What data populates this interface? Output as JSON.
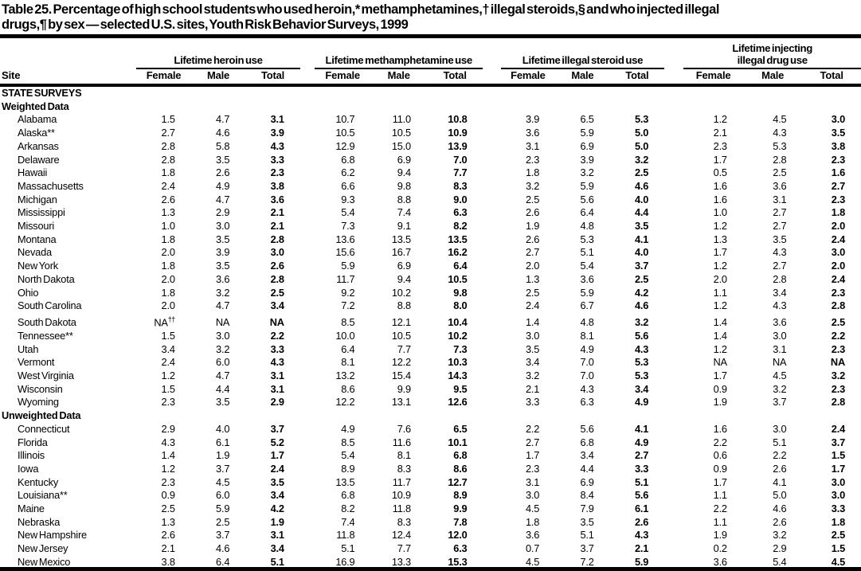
{
  "title": {
    "line1": "Table 25. Percentage of high school students who used heroin,* methamphetamines,† illegal steroids,§ and who injected illegal",
    "line2": "drugs,¶ by sex — selected U.S. sites, Youth Risk Behavior Surveys, 1999"
  },
  "table": {
    "site_header": "Site",
    "groups": [
      {
        "name": "lifetime-heroin-use",
        "label_lines": [
          "Lifetime heroin use",
          ""
        ]
      },
      {
        "name": "lifetime-methamphetamine-use",
        "label_lines": [
          "Lifetime methamphetamine use",
          ""
        ]
      },
      {
        "name": "lifetime-illegal-steroid-use",
        "label_lines": [
          "Lifetime illegal steroid use",
          ""
        ]
      },
      {
        "name": "lifetime-injecting-illegal-drug-use",
        "label_lines": [
          "Lifetime injecting",
          "illegal drug use"
        ]
      }
    ],
    "subcolumns": [
      "Female",
      "Male",
      "Total"
    ],
    "section_header": "STATE SURVEYS",
    "subsections": [
      {
        "label": "Weighted Data",
        "rows": [
          {
            "site": "Alabama",
            "values": [
              "1.5",
              "4.7",
              "3.1",
              "10.7",
              "11.0",
              "10.8",
              "3.9",
              "6.5",
              "5.3",
              "1.2",
              "4.5",
              "3.0"
            ]
          },
          {
            "site": "Alaska**",
            "values": [
              "2.7",
              "4.6",
              "3.9",
              "10.5",
              "10.5",
              "10.9",
              "3.6",
              "5.9",
              "5.0",
              "2.1",
              "4.3",
              "3.5"
            ]
          },
          {
            "site": "Arkansas",
            "values": [
              "2.8",
              "5.8",
              "4.3",
              "12.9",
              "15.0",
              "13.9",
              "3.1",
              "6.9",
              "5.0",
              "2.3",
              "5.3",
              "3.8"
            ]
          },
          {
            "site": "Delaware",
            "values": [
              "2.8",
              "3.5",
              "3.3",
              "6.8",
              "6.9",
              "7.0",
              "2.3",
              "3.9",
              "3.2",
              "1.7",
              "2.8",
              "2.3"
            ]
          },
          {
            "site": "Hawaii",
            "values": [
              "1.8",
              "2.6",
              "2.3",
              "6.2",
              "9.4",
              "7.7",
              "1.8",
              "3.2",
              "2.5",
              "0.5",
              "2.5",
              "1.6"
            ]
          },
          {
            "site": "Massachusetts",
            "values": [
              "2.4",
              "4.9",
              "3.8",
              "6.6",
              "9.8",
              "8.3",
              "3.2",
              "5.9",
              "4.6",
              "1.6",
              "3.6",
              "2.7"
            ]
          },
          {
            "site": "Michigan",
            "values": [
              "2.6",
              "4.7",
              "3.6",
              "9.3",
              "8.8",
              "9.0",
              "2.5",
              "5.6",
              "4.0",
              "1.6",
              "3.1",
              "2.3"
            ]
          },
          {
            "site": "Mississippi",
            "values": [
              "1.3",
              "2.9",
              "2.1",
              "5.4",
              "7.4",
              "6.3",
              "2.6",
              "6.4",
              "4.4",
              "1.0",
              "2.7",
              "1.8"
            ]
          },
          {
            "site": "Missouri",
            "values": [
              "1.0",
              "3.0",
              "2.1",
              "7.3",
              "9.1",
              "8.2",
              "1.9",
              "4.8",
              "3.5",
              "1.2",
              "2.7",
              "2.0"
            ]
          },
          {
            "site": "Montana",
            "values": [
              "1.8",
              "3.5",
              "2.8",
              "13.6",
              "13.5",
              "13.5",
              "2.6",
              "5.3",
              "4.1",
              "1.3",
              "3.5",
              "2.4"
            ]
          },
          {
            "site": "Nevada",
            "values": [
              "2.0",
              "3.9",
              "3.0",
              "15.6",
              "16.7",
              "16.2",
              "2.7",
              "5.1",
              "4.0",
              "1.7",
              "4.3",
              "3.0"
            ]
          },
          {
            "site": "New York",
            "values": [
              "1.8",
              "3.5",
              "2.6",
              "5.9",
              "6.9",
              "6.4",
              "2.0",
              "5.4",
              "3.7",
              "1.2",
              "2.7",
              "2.0"
            ]
          },
          {
            "site": "North Dakota",
            "values": [
              "2.0",
              "3.6",
              "2.8",
              "11.7",
              "9.4",
              "10.5",
              "1.3",
              "3.6",
              "2.5",
              "2.0",
              "2.8",
              "2.4"
            ]
          },
          {
            "site": "Ohio",
            "values": [
              "1.8",
              "3.2",
              "2.5",
              "9.2",
              "10.2",
              "9.8",
              "2.5",
              "5.9",
              "4.2",
              "1.1",
              "3.4",
              "2.3"
            ]
          },
          {
            "site": "South Carolina",
            "values": [
              "2.0",
              "4.7",
              "3.4",
              "7.2",
              "8.8",
              "8.0",
              "2.4",
              "6.7",
              "4.6",
              "1.2",
              "4.3",
              "2.8"
            ]
          },
          {
            "site": "South Dakota",
            "values": [
              "NA††",
              "NA",
              "NA",
              "8.5",
              "12.1",
              "10.4",
              "1.4",
              "4.8",
              "3.2",
              "1.4",
              "3.6",
              "2.5"
            ]
          },
          {
            "site": "Tennessee**",
            "values": [
              "1.5",
              "3.0",
              "2.2",
              "10.0",
              "10.5",
              "10.2",
              "3.0",
              "8.1",
              "5.6",
              "1.4",
              "3.0",
              "2.2"
            ]
          },
          {
            "site": "Utah",
            "values": [
              "3.4",
              "3.2",
              "3.3",
              "6.4",
              "7.7",
              "7.3",
              "3.5",
              "4.9",
              "4.3",
              "1.2",
              "3.1",
              "2.3"
            ]
          },
          {
            "site": "Vermont",
            "values": [
              "2.4",
              "6.0",
              "4.3",
              "8.1",
              "12.2",
              "10.3",
              "3.4",
              "7.0",
              "5.3",
              "NA",
              "NA",
              "NA"
            ]
          },
          {
            "site": "West Virginia",
            "values": [
              "1.2",
              "4.7",
              "3.1",
              "13.2",
              "15.4",
              "14.3",
              "3.2",
              "7.0",
              "5.3",
              "1.7",
              "4.5",
              "3.2"
            ]
          },
          {
            "site": "Wisconsin",
            "values": [
              "1.5",
              "4.4",
              "3.1",
              "8.6",
              "9.9",
              "9.5",
              "2.1",
              "4.3",
              "3.4",
              "0.9",
              "3.2",
              "2.3"
            ]
          },
          {
            "site": "Wyoming",
            "values": [
              "2.3",
              "3.5",
              "2.9",
              "12.2",
              "13.1",
              "12.6",
              "3.3",
              "6.3",
              "4.9",
              "1.9",
              "3.7",
              "2.8"
            ]
          }
        ]
      },
      {
        "label": "Unweighted Data",
        "rows": [
          {
            "site": "Connecticut",
            "values": [
              "2.9",
              "4.0",
              "3.7",
              "4.9",
              "7.6",
              "6.5",
              "2.2",
              "5.6",
              "4.1",
              "1.6",
              "3.0",
              "2.4"
            ]
          },
          {
            "site": "Florida",
            "values": [
              "4.3",
              "6.1",
              "5.2",
              "8.5",
              "11.6",
              "10.1",
              "2.7",
              "6.8",
              "4.9",
              "2.2",
              "5.1",
              "3.7"
            ]
          },
          {
            "site": "Illinois",
            "values": [
              "1.4",
              "1.9",
              "1.7",
              "5.4",
              "8.1",
              "6.8",
              "1.7",
              "3.4",
              "2.7",
              "0.6",
              "2.2",
              "1.5"
            ]
          },
          {
            "site": "Iowa",
            "values": [
              "1.2",
              "3.7",
              "2.4",
              "8.9",
              "8.3",
              "8.6",
              "2.3",
              "4.4",
              "3.3",
              "0.9",
              "2.6",
              "1.7"
            ]
          },
          {
            "site": "Kentucky",
            "values": [
              "2.3",
              "4.5",
              "3.5",
              "13.5",
              "11.7",
              "12.7",
              "3.1",
              "6.9",
              "5.1",
              "1.7",
              "4.1",
              "3.0"
            ]
          },
          {
            "site": "Louisiana**",
            "values": [
              "0.9",
              "6.0",
              "3.4",
              "6.8",
              "10.9",
              "8.9",
              "3.0",
              "8.4",
              "5.6",
              "1.1",
              "5.0",
              "3.0"
            ]
          },
          {
            "site": "Maine",
            "values": [
              "2.5",
              "5.9",
              "4.2",
              "8.2",
              "11.8",
              "9.9",
              "4.5",
              "7.9",
              "6.1",
              "2.2",
              "4.6",
              "3.3"
            ]
          },
          {
            "site": "Nebraska",
            "values": [
              "1.3",
              "2.5",
              "1.9",
              "7.4",
              "8.3",
              "7.8",
              "1.8",
              "3.5",
              "2.6",
              "1.1",
              "2.6",
              "1.8"
            ]
          },
          {
            "site": "New Hampshire",
            "values": [
              "2.6",
              "3.7",
              "3.1",
              "11.8",
              "12.4",
              "12.0",
              "3.6",
              "5.1",
              "4.3",
              "1.9",
              "3.2",
              "2.5"
            ]
          },
          {
            "site": "New Jersey",
            "values": [
              "2.1",
              "4.6",
              "3.4",
              "5.1",
              "7.7",
              "6.3",
              "0.7",
              "3.7",
              "2.1",
              "0.2",
              "2.9",
              "1.5"
            ]
          },
          {
            "site": "New Mexico",
            "values": [
              "3.8",
              "6.4",
              "5.1",
              "16.9",
              "13.3",
              "15.3",
              "4.5",
              "7.2",
              "5.9",
              "3.6",
              "5.4",
              "4.5"
            ]
          }
        ]
      }
    ]
  }
}
